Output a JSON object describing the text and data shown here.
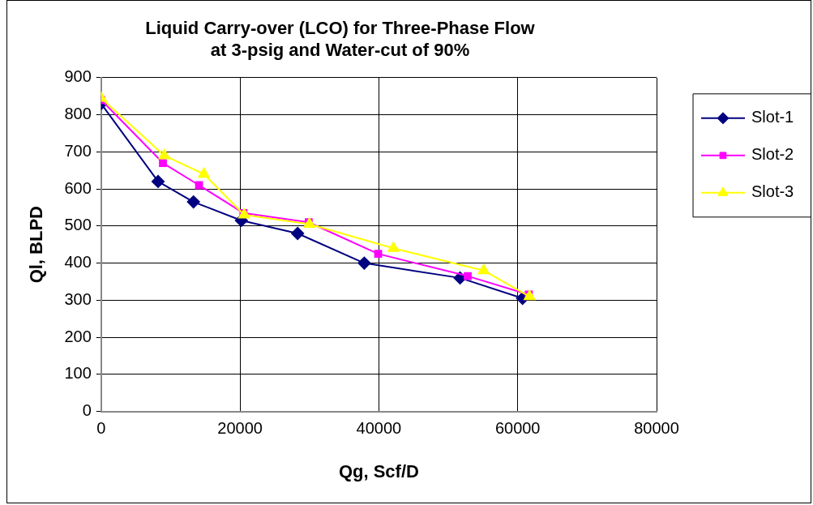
{
  "chart_data": {
    "type": "line",
    "title": "Liquid Carry-over (LCO) for Three-Phase Flow\nat 3-psig and Water-cut of 90%",
    "xlabel": "Qg, Scf/D",
    "ylabel": "Ql, BLPD",
    "xlim": [
      0,
      80000
    ],
    "xticks": [
      0,
      20000,
      40000,
      60000,
      80000
    ],
    "ylim": [
      0,
      900
    ],
    "yticks": [
      0,
      100,
      200,
      300,
      400,
      500,
      600,
      700,
      800,
      900
    ],
    "grid": true,
    "legend": "right",
    "line_style": "solid",
    "series": [
      {
        "name": "Slot-1",
        "color": "#000080",
        "marker": "diamond",
        "x": [
          0,
          8200,
          13300,
          20200,
          28300,
          37900,
          51700,
          60700
        ],
        "values": [
          830,
          620,
          565,
          515,
          480,
          400,
          360,
          305
        ]
      },
      {
        "name": "Slot-2",
        "color": "#ff00ff",
        "marker": "square",
        "x": [
          0,
          8900,
          14100,
          20500,
          29900,
          39900,
          52800,
          61600
        ],
        "values": [
          840,
          670,
          610,
          535,
          510,
          425,
          365,
          315
        ]
      },
      {
        "name": "Slot-3",
        "color": "#ffff00",
        "marker": "triangle",
        "x": [
          0,
          9100,
          14800,
          20600,
          30000,
          42100,
          55100,
          61700
        ],
        "values": [
          845,
          690,
          640,
          530,
          505,
          440,
          380,
          310
        ]
      }
    ]
  }
}
